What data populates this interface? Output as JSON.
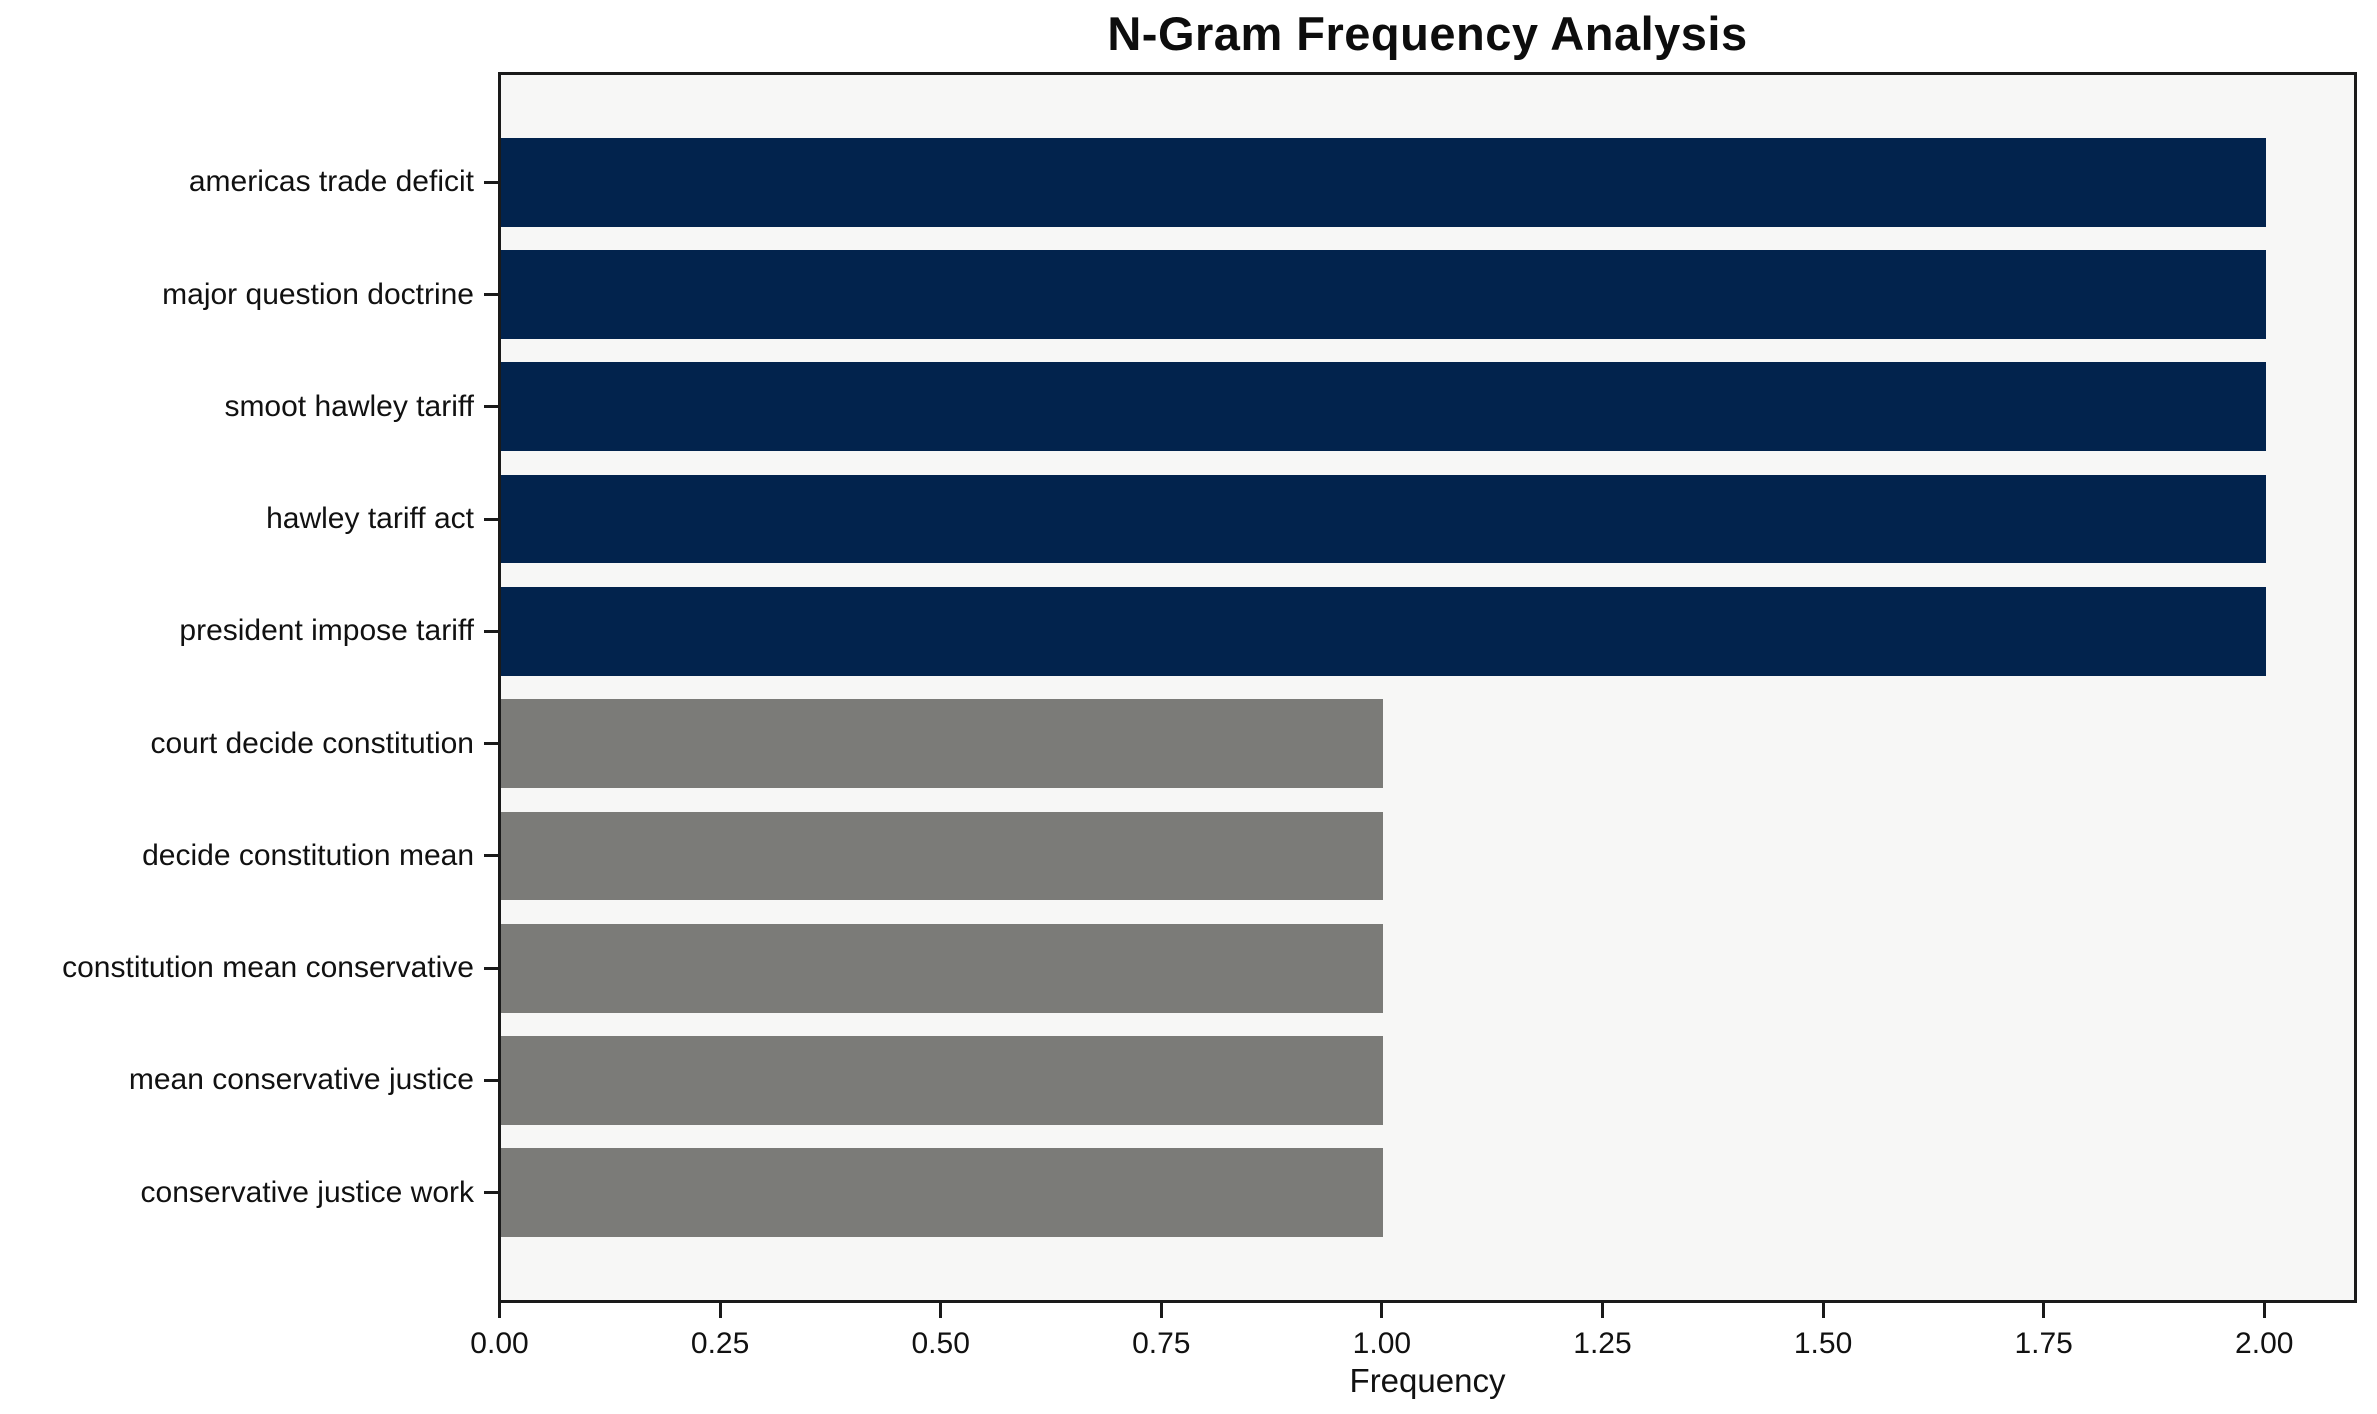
{
  "chart_data": {
    "type": "bar",
    "orientation": "horizontal",
    "title": "N-Gram Frequency Analysis",
    "xlabel": "Frequency",
    "ylabel": "",
    "categories": [
      "americas trade deficit",
      "major question doctrine",
      "smoot hawley tariff",
      "hawley tariff act",
      "president impose tariff",
      "court decide constitution",
      "decide constitution mean",
      "constitution mean conservative",
      "mean conservative justice",
      "conservative justice work"
    ],
    "values": [
      2,
      2,
      2,
      2,
      2,
      1,
      1,
      1,
      1,
      1
    ],
    "bar_colors": [
      "#02234d",
      "#02234d",
      "#02234d",
      "#02234d",
      "#02234d",
      "#7b7b78",
      "#7b7b78",
      "#7b7b78",
      "#7b7b78",
      "#7b7b78"
    ],
    "xlim": [
      0,
      2.1
    ],
    "x_ticks": [
      0.0,
      0.25,
      0.5,
      0.75,
      1.0,
      1.25,
      1.5,
      1.75,
      2.0
    ],
    "x_tick_labels": [
      "0.00",
      "0.25",
      "0.50",
      "0.75",
      "1.00",
      "1.25",
      "1.50",
      "1.75",
      "2.00"
    ],
    "grid": false,
    "legend": null,
    "colors": {
      "high_frequency_bar": "#02234d",
      "low_frequency_bar": "#7b7b78",
      "plot_background": "#f7f7f6",
      "figure_background": "#ffffff",
      "spine": "#1a1a1a",
      "text": "#111111"
    }
  }
}
